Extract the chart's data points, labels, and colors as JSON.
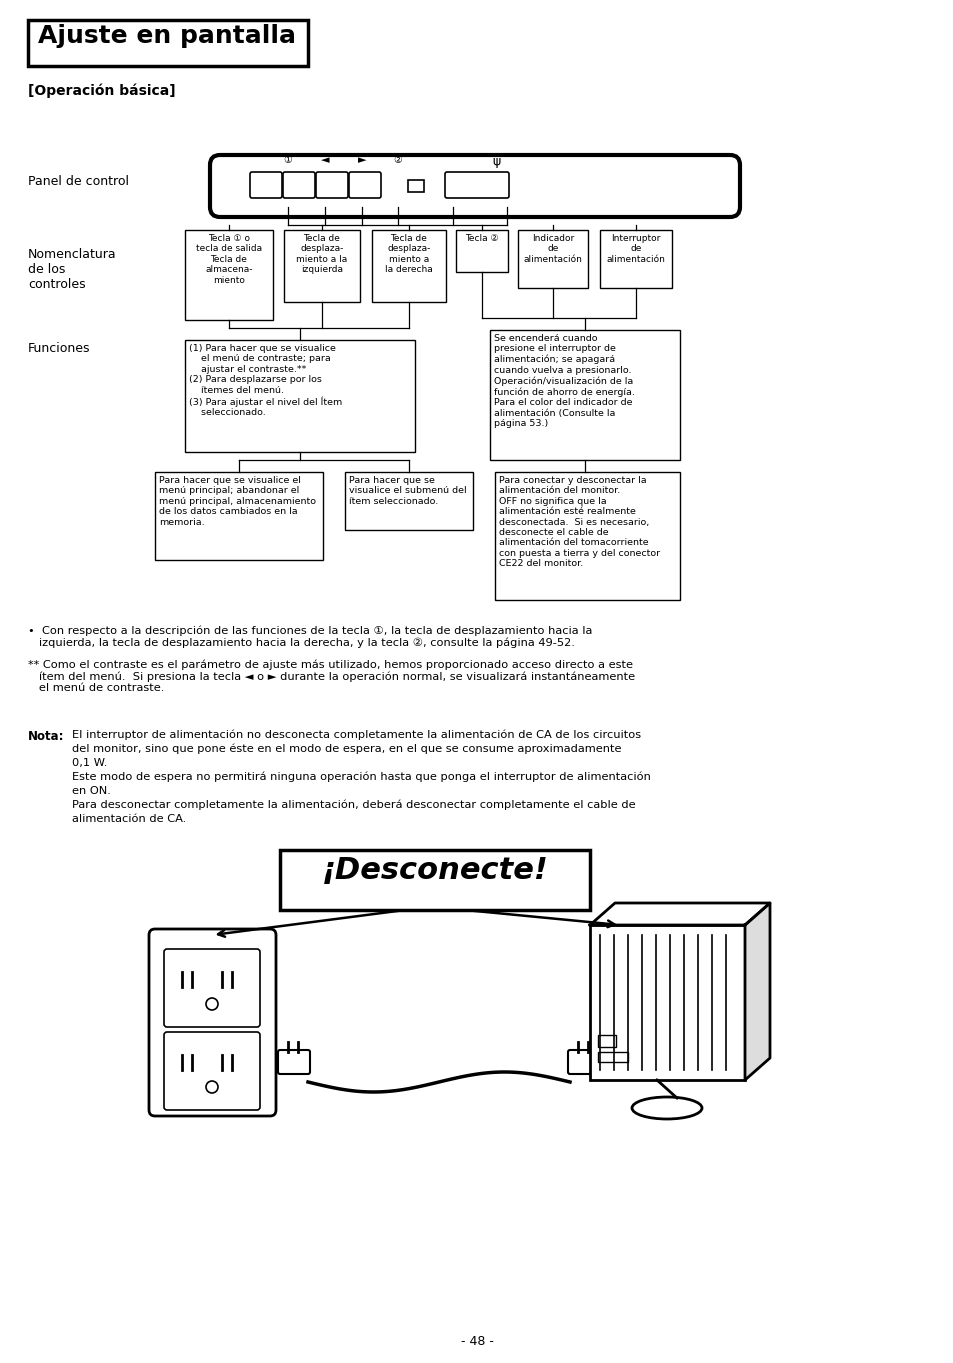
{
  "title": "Ajuste en pantalla",
  "subtitle": "[Operación básica]",
  "bg_color": "#ffffff",
  "text_color": "#000000",
  "page_number": "- 48 -",
  "panel_label": "Panel de control",
  "nomenclatura_label": "Nomenclatura\nde los\ncontroles",
  "funciones_label": "Funciones",
  "box1_title": "Tecla ① o\ntecla de salida\nTecla de\nalmacena-\nmiento",
  "box2_title": "Tecla de\ndesplaza-\nmiento a la\nizquierda",
  "box3_title": "Tecla de\ndesplaza-\nmiento a\nla derecha",
  "box4_title": "Tecla ②",
  "box5_title": "Indicador\nde\nalimentación",
  "box6_title": "Interruptor\nde\nalimentación",
  "func_box1": "(1) Para hacer que se visualice\n    el menú de contraste; para\n    ajustar el contraste.**\n(2) Para desplazarse por los\n    ítemes del menú.\n(3) Para ajustar el nivel del Ítem\n    seleccionado.",
  "func_box2": "Se encenderá cuando\npresione el interruptor de\nalimentación; se apagará\ncuando vuelva a presionarlo.\nOperación/visualización de la\nfunción de ahorro de energía.\nPara el color del indicador de\nalimentación (Consulte la\npágina 53.)",
  "bottom_box1": "Para hacer que se visualice el\nmenú principal; abandonar el\nmenú principal, almacenamiento\nde los datos cambiados en la\nmemoria.",
  "bottom_box2": "Para hacer que se\nvisualice el submenú del\nítem seleccionado.",
  "bottom_box3": "Para conectar y desconectar la\nalimentación del monitor.\nOFF no significa que la\nalimentación esté realmente\ndesconectada.  Si es necesario,\ndesconecte el cable de\nalimentación del tomacorriente\ncon puesta a tierra y del conector\nCE22 del monitor.",
  "bullet1": "•  Con respecto a la descripción de las funciones de la tecla ①, la tecla de desplazamiento hacia la\n   izquierda, la tecla de desplazamiento hacia la derecha, y la tecla ②, consulte la página 49-52.",
  "bullet2": "** Como el contraste es el parámetro de ajuste más utilizado, hemos proporcionado acceso directo a este\n   ítem del menú.  Si presiona la tecla ◄ o ► durante la operación normal, se visualizará instantáneamente\n   el menú de contraste.",
  "nota_label": "Nota:",
  "nota_text1": "El interruptor de alimentación no desconecta completamente la alimentación de CA de los circuitos",
  "nota_text2": "del monitor, sino que pone éste en el modo de espera, en el que se consume aproximadamente",
  "nota_text3": "0,1 W.",
  "nota_text4": "Este modo de espera no permitirá ninguna operación hasta que ponga el interruptor de alimentación",
  "nota_text5": "en ON.",
  "nota_text6": "Para desconectar completamente la alimentación, deberá desconectar completamente el cable de",
  "nota_text7": "alimentación de CA.",
  "desconecte_text": "¡Desconecte!"
}
